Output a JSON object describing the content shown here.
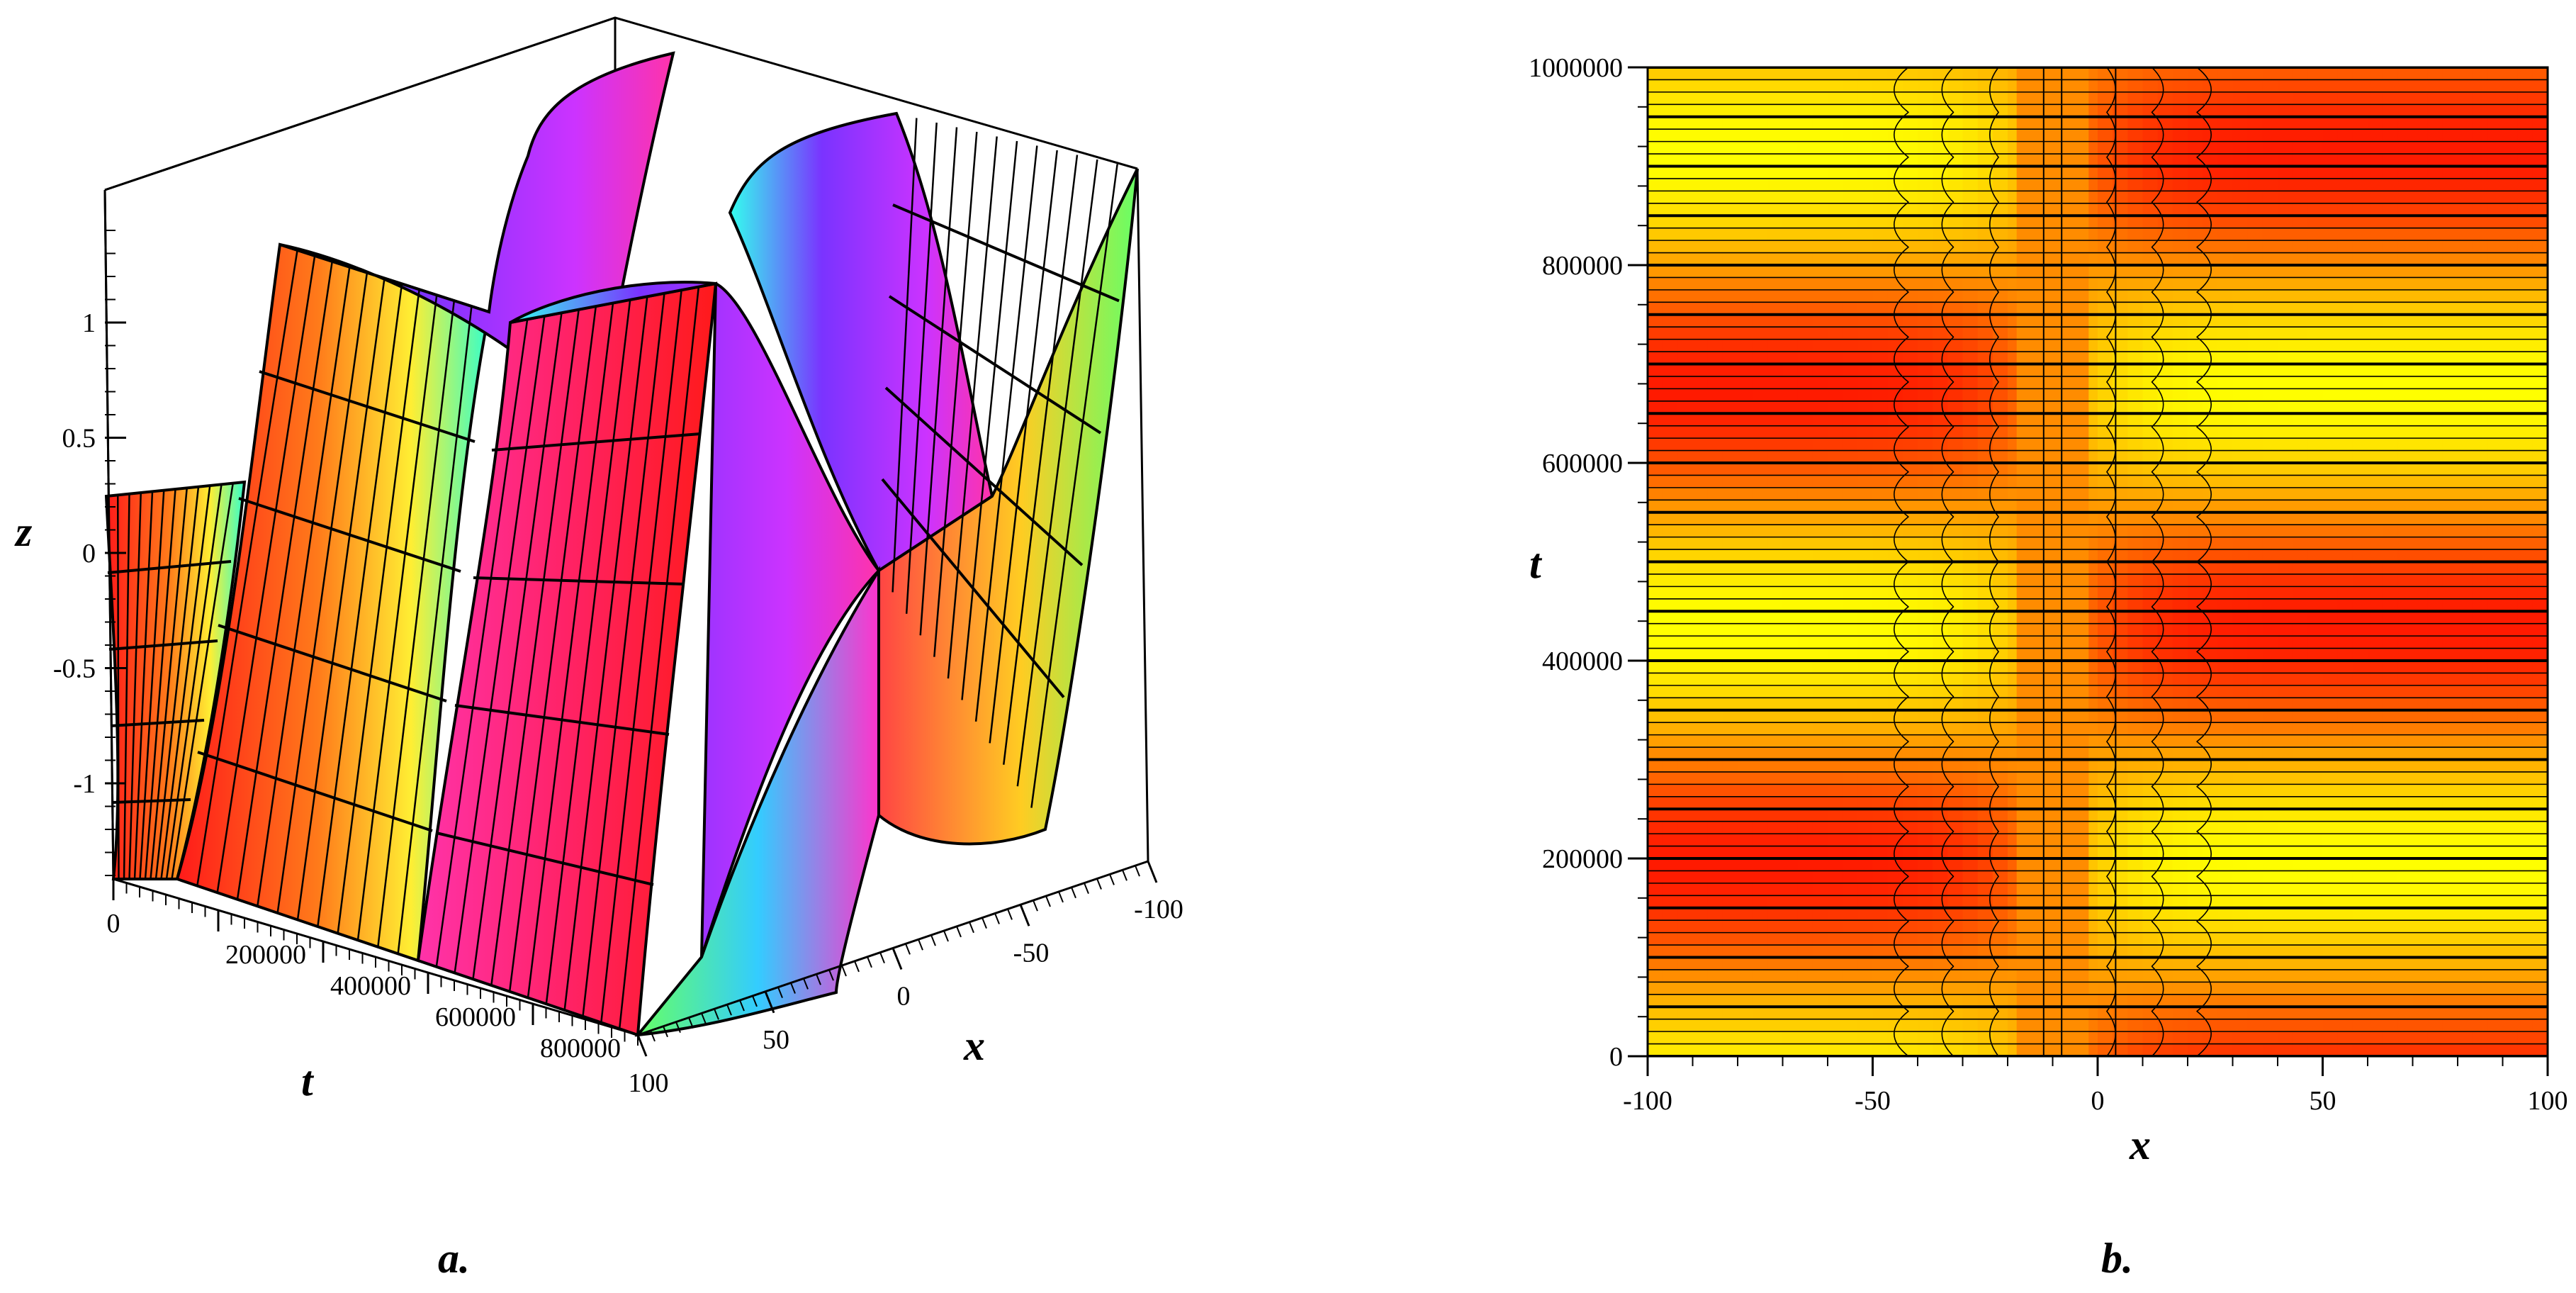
{
  "chart_data": [
    {
      "type": "surface3d",
      "panel_label": "a.",
      "axes": {
        "x": {
          "label": "x",
          "range": [
            -100,
            100
          ],
          "ticks": [
            "-100",
            "-50",
            "0",
            "50",
            "100"
          ]
        },
        "t": {
          "label": "t",
          "range": [
            0,
            1000000
          ],
          "ticks": [
            "0",
            "200000",
            "400000",
            "600000",
            "800000"
          ]
        },
        "z": {
          "label": "z",
          "range": [
            -1.5,
            1.5
          ],
          "ticks": [
            "1",
            "0.5",
            "0",
            "-0.5",
            "-1"
          ]
        }
      },
      "surface_samples": {
        "x": [
          -100,
          -50,
          0,
          50,
          100
        ],
        "t": [
          0,
          250000,
          500000,
          750000,
          1000000
        ],
        "z": [
          [
            1.41,
            0.18,
            -1.41,
            0.18,
            1.41
          ],
          [
            1.35,
            0.1,
            -1.38,
            -0.2,
            1.3
          ],
          [
            0.9,
            -0.6,
            -0.8,
            -1.05,
            0.95
          ],
          [
            -0.3,
            -1.3,
            0.4,
            -1.4,
            -0.25
          ],
          [
            -1.4,
            -1.1,
            1.38,
            -0.9,
            -1.41
          ]
        ]
      },
      "colormap": [
        "#ff1a1a",
        "#ff9900",
        "#ffff33",
        "#33ff99",
        "#33ccff",
        "#9933ff",
        "#ff33cc"
      ]
    },
    {
      "type": "contour",
      "panel_label": "b.",
      "xlabel": "x",
      "ylabel": "t",
      "xlim": [
        -100,
        100
      ],
      "ylim": [
        0,
        1000000
      ],
      "xticks": [
        "-100",
        "-50",
        "0",
        "50",
        "100"
      ],
      "yticks": [
        "0",
        "200000",
        "400000",
        "600000",
        "800000",
        "1000000"
      ],
      "period_t": 480000,
      "center_x": -10,
      "colors": {
        "low": "#ffff00",
        "mid": "#ff9900",
        "high": "#ff1a00",
        "lines": "#000000"
      }
    }
  ]
}
